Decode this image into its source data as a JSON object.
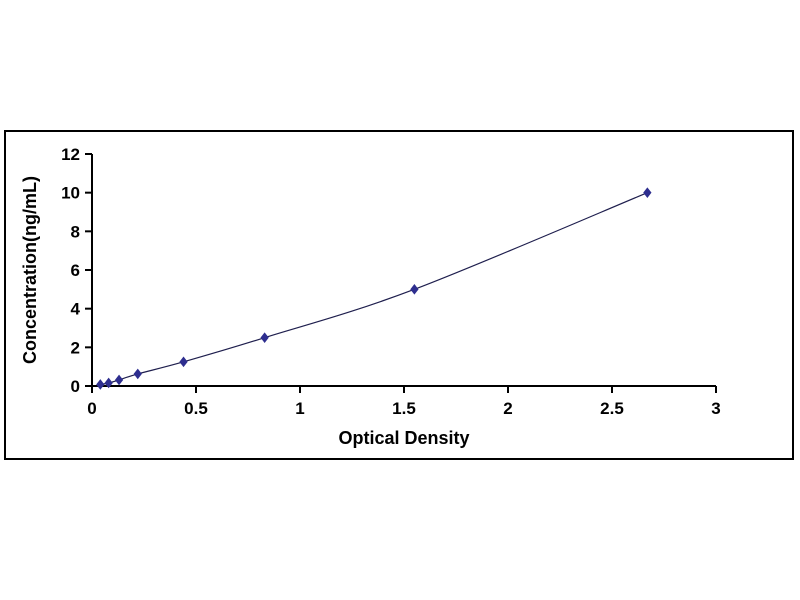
{
  "chart_data": {
    "type": "line",
    "title": "",
    "xlabel": "Optical Density",
    "ylabel": "Concentration(ng/mL)",
    "xlim": [
      0,
      3
    ],
    "ylim": [
      0,
      12
    ],
    "xticks": [
      0,
      0.5,
      1,
      1.5,
      2,
      2.5,
      3
    ],
    "xtick_labels": [
      "0",
      "0.5",
      "1",
      "1.5",
      "2",
      "2.5",
      "3"
    ],
    "yticks": [
      0,
      2,
      4,
      6,
      8,
      10,
      12
    ],
    "ytick_labels": [
      "0",
      "2",
      "4",
      "6",
      "8",
      "10",
      "12"
    ],
    "grid": false,
    "legend": "none",
    "marker": "diamond",
    "series": [
      {
        "name": "standard-curve",
        "points": [
          {
            "x": 0.04,
            "y": 0.078
          },
          {
            "x": 0.08,
            "y": 0.156
          },
          {
            "x": 0.13,
            "y": 0.312
          },
          {
            "x": 0.22,
            "y": 0.625
          },
          {
            "x": 0.44,
            "y": 1.25
          },
          {
            "x": 0.83,
            "y": 2.5
          },
          {
            "x": 1.55,
            "y": 5.0
          },
          {
            "x": 2.67,
            "y": 10.0
          }
        ]
      }
    ],
    "colors": {
      "line": "#1f1f4e",
      "marker": "#2e2e8f",
      "axis": "#000000",
      "frame_border": "#000000",
      "background": "#ffffff"
    }
  }
}
